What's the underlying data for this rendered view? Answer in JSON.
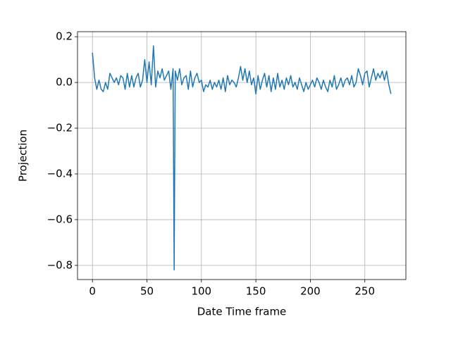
{
  "chart_data": {
    "type": "line",
    "xlabel": "Date Time frame",
    "ylabel": "Projection",
    "xlim": [
      -13.7,
      287.7
    ],
    "ylim": [
      -0.862,
      0.222
    ],
    "xticks": [
      0,
      50,
      100,
      150,
      200,
      250
    ],
    "yticks": [
      {
        "value": -0.8,
        "label": "−0.8"
      },
      {
        "value": -0.6,
        "label": "−0.6"
      },
      {
        "value": -0.4,
        "label": "−0.4"
      },
      {
        "value": -0.2,
        "label": "−0.2"
      },
      {
        "value": 0,
        "label": "0.0"
      },
      0.2
    ],
    "grid": true,
    "x": [
      0,
      2,
      4,
      6,
      8,
      10,
      12,
      14,
      16,
      18,
      20,
      22,
      24,
      26,
      28,
      30,
      32,
      34,
      36,
      38,
      40,
      42,
      44,
      46,
      48,
      50,
      52,
      54,
      56,
      58,
      60,
      62,
      64,
      66,
      68,
      70,
      72,
      74,
      75,
      76,
      78,
      80,
      82,
      84,
      86,
      88,
      90,
      92,
      94,
      96,
      98,
      100,
      102,
      104,
      106,
      108,
      110,
      112,
      114,
      116,
      118,
      120,
      122,
      124,
      126,
      128,
      130,
      132,
      134,
      136,
      138,
      140,
      142,
      144,
      146,
      148,
      150,
      152,
      154,
      156,
      158,
      160,
      162,
      164,
      166,
      168,
      170,
      172,
      174,
      176,
      178,
      180,
      182,
      184,
      186,
      188,
      190,
      192,
      194,
      196,
      198,
      200,
      202,
      204,
      206,
      208,
      210,
      212,
      214,
      216,
      218,
      220,
      222,
      224,
      226,
      228,
      230,
      232,
      234,
      236,
      238,
      240,
      242,
      244,
      246,
      248,
      250,
      252,
      254,
      256,
      258,
      260,
      262,
      264,
      266,
      268,
      270,
      272,
      274
    ],
    "series": [
      {
        "color": "#1f77b4",
        "values": [
          0.13,
          0.02,
          -0.03,
          0.01,
          -0.03,
          -0.04,
          0.0,
          -0.03,
          0.04,
          0.02,
          0.0,
          0.02,
          -0.01,
          0.03,
          0.02,
          -0.03,
          0.04,
          -0.02,
          0.03,
          -0.02,
          0.02,
          0.04,
          -0.02,
          0.01,
          0.1,
          0.0,
          0.09,
          -0.01,
          0.16,
          -0.02,
          0.05,
          0.02,
          0.06,
          0.01,
          0.03,
          0.05,
          -0.03,
          0.06,
          -0.82,
          0.05,
          0.01,
          0.06,
          -0.01,
          0.02,
          0.03,
          -0.03,
          0.05,
          -0.02,
          0.02,
          0.04,
          0.0,
          0.01,
          -0.04,
          -0.01,
          -0.02,
          0.01,
          -0.03,
          0.0,
          -0.02,
          0.01,
          -0.03,
          0.02,
          -0.04,
          0.03,
          -0.01,
          0.01,
          0.0,
          -0.02,
          0.02,
          0.07,
          0.01,
          0.06,
          0.0,
          0.05,
          -0.01,
          0.02,
          -0.05,
          0.03,
          -0.03,
          0.01,
          0.04,
          -0.02,
          0.03,
          -0.04,
          0.02,
          -0.03,
          0.04,
          -0.02,
          0.01,
          -0.03,
          0.02,
          -0.01,
          0.03,
          -0.02,
          0.0,
          -0.03,
          0.02,
          -0.01,
          -0.04,
          0.0,
          -0.03,
          -0.01,
          0.01,
          -0.02,
          0.02,
          0.0,
          -0.03,
          0.01,
          -0.02,
          -0.04,
          0.01,
          -0.02,
          0.03,
          -0.03,
          -0.01,
          0.02,
          -0.02,
          0.01,
          0.02,
          -0.01,
          0.03,
          -0.02,
          0.0,
          0.06,
          0.03,
          -0.01,
          0.04,
          0.05,
          -0.02,
          0.02,
          0.06,
          0.01,
          0.04,
          0.02,
          0.05,
          0.01,
          0.05,
          -0.01,
          -0.05
        ]
      }
    ]
  }
}
